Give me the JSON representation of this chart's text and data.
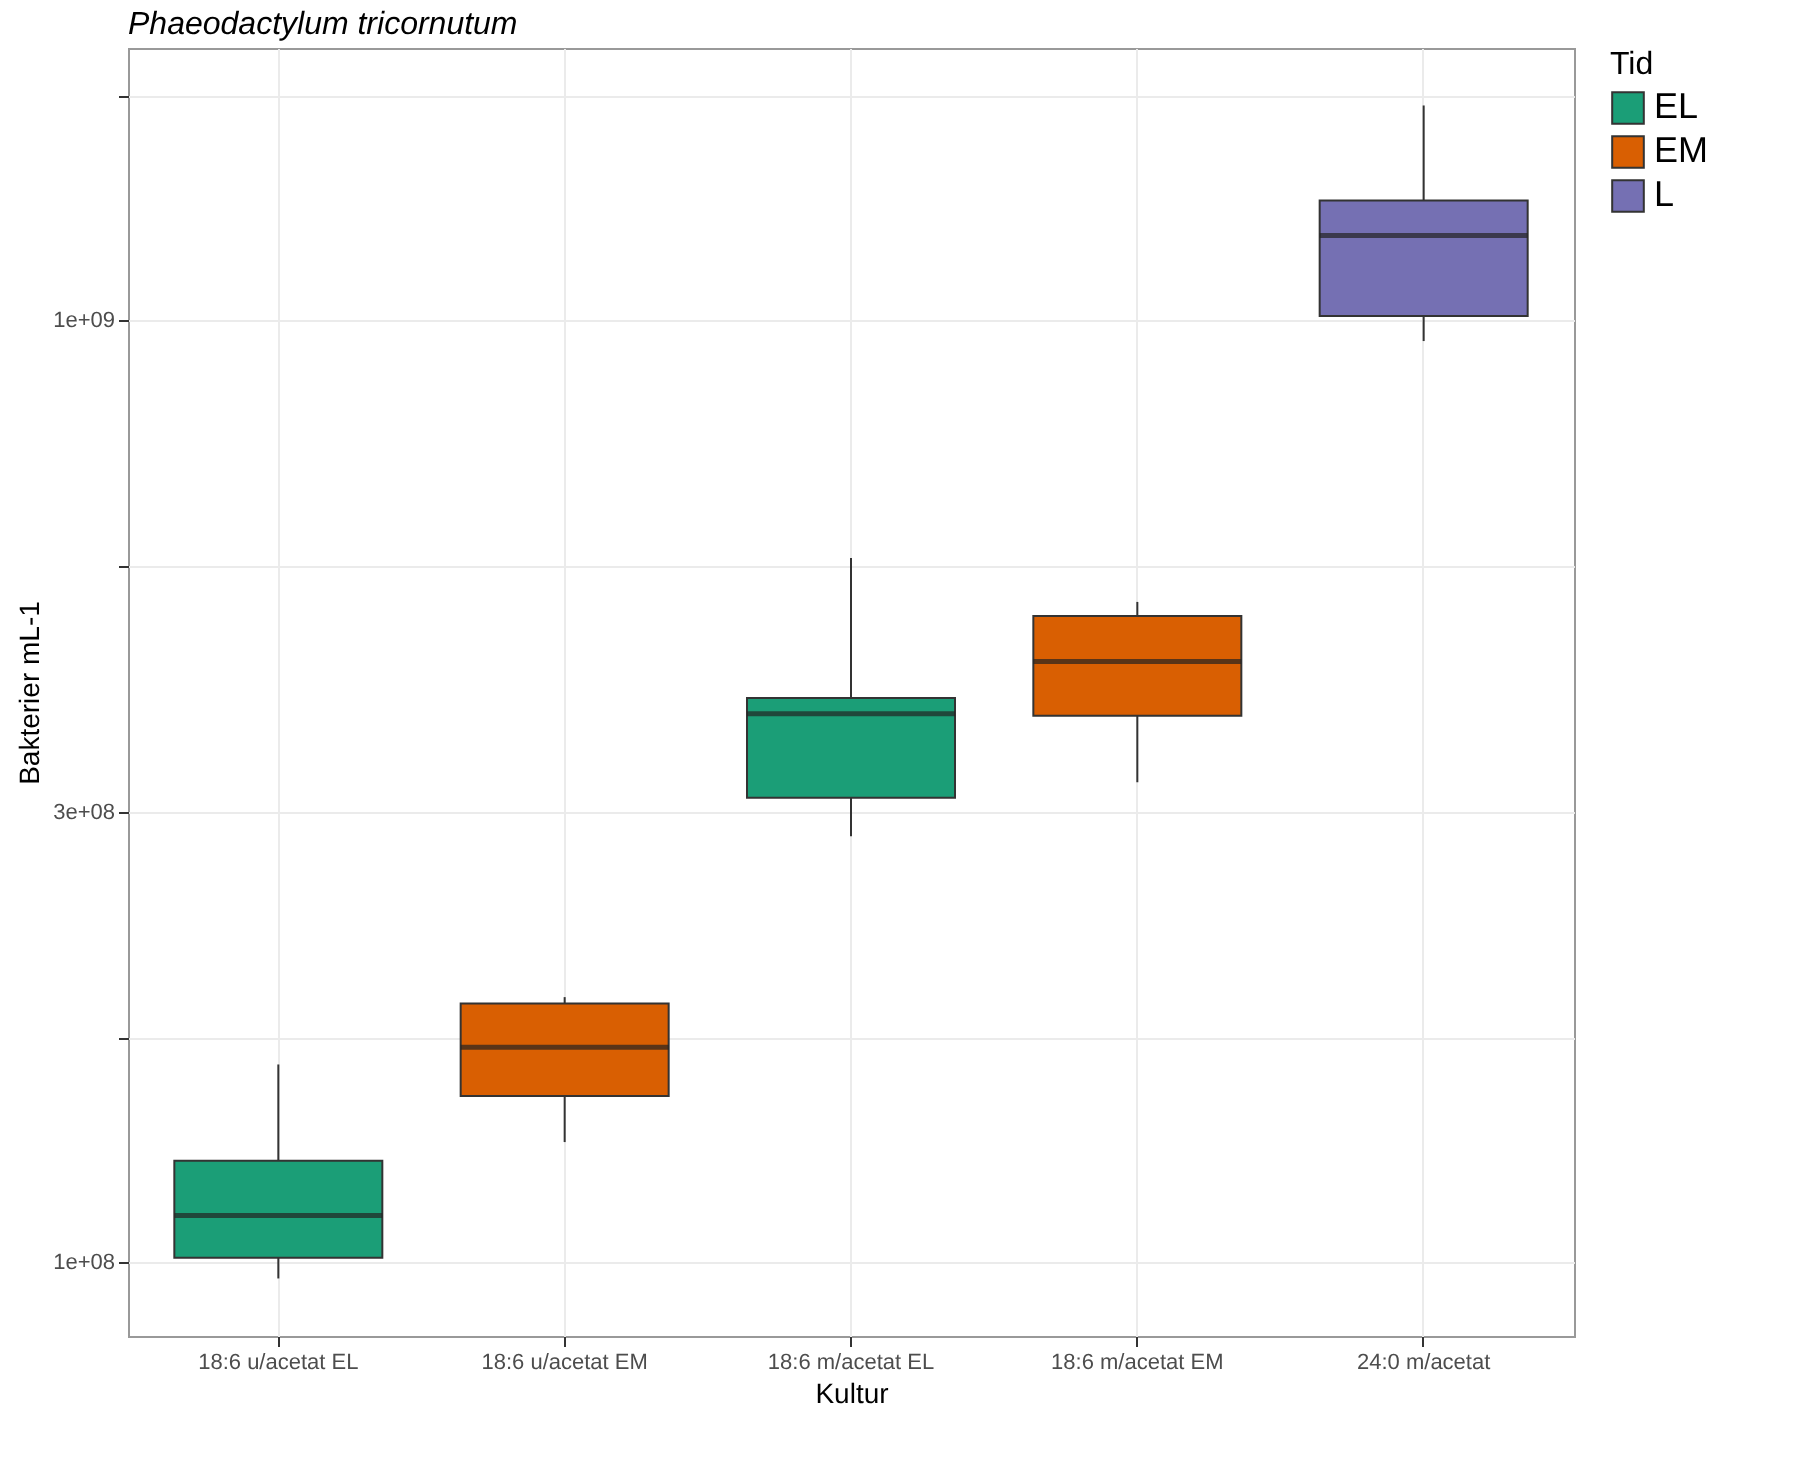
{
  "chart_data": {
    "type": "box",
    "title": "Phaeodactylum tricornutum",
    "xlabel": "Kultur",
    "ylabel": "Bakterier mL-1",
    "legend_title": "Tid",
    "legend": "right",
    "grid": true,
    "log": true,
    "categories": [
      "18:6 u/acetat EL",
      "18:6 u/acetat EM",
      "18:6 m/acetat EL",
      "18:6 m/acetat EM",
      "24:0 m/acetat"
    ],
    "ylim": [
      83400000,
      1945000000
    ],
    "yticks": [
      {
        "value": 100000000,
        "label": "1e+08"
      },
      {
        "value": 173000000,
        "label": null
      },
      {
        "value": 300000000,
        "label": "3e+08"
      },
      {
        "value": 548000000,
        "label": null
      },
      {
        "value": 1000000000,
        "label": "1e+09"
      },
      {
        "value": 1730000000,
        "label": null
      }
    ],
    "series": [
      {
        "name": "EL",
        "color": "#1b9e77",
        "boxes": [
          {
            "low": 96000000,
            "q1": 101000000,
            "median": 112000000,
            "q3": 128000000,
            "high": 162000000
          },
          null,
          {
            "low": 283000000,
            "q1": 311000000,
            "median": 382000000,
            "q3": 397000000,
            "high": 559000000
          },
          null,
          null
        ]
      },
      {
        "name": "EM",
        "color": "#d95f02",
        "boxes": [
          null,
          {
            "low": 134000000,
            "q1": 150000000,
            "median": 169000000,
            "q3": 188000000,
            "high": 191000000
          },
          null,
          {
            "low": 323000000,
            "q1": 380000000,
            "median": 434000000,
            "q3": 485000000,
            "high": 502000000
          },
          null
        ]
      },
      {
        "name": "L",
        "color": "#7570b3",
        "boxes": [
          null,
          null,
          null,
          null,
          {
            "low": 950000000,
            "q1": 1010000000,
            "median": 1230000000,
            "q3": 1340000000,
            "high": 1690000000
          }
        ]
      }
    ]
  }
}
